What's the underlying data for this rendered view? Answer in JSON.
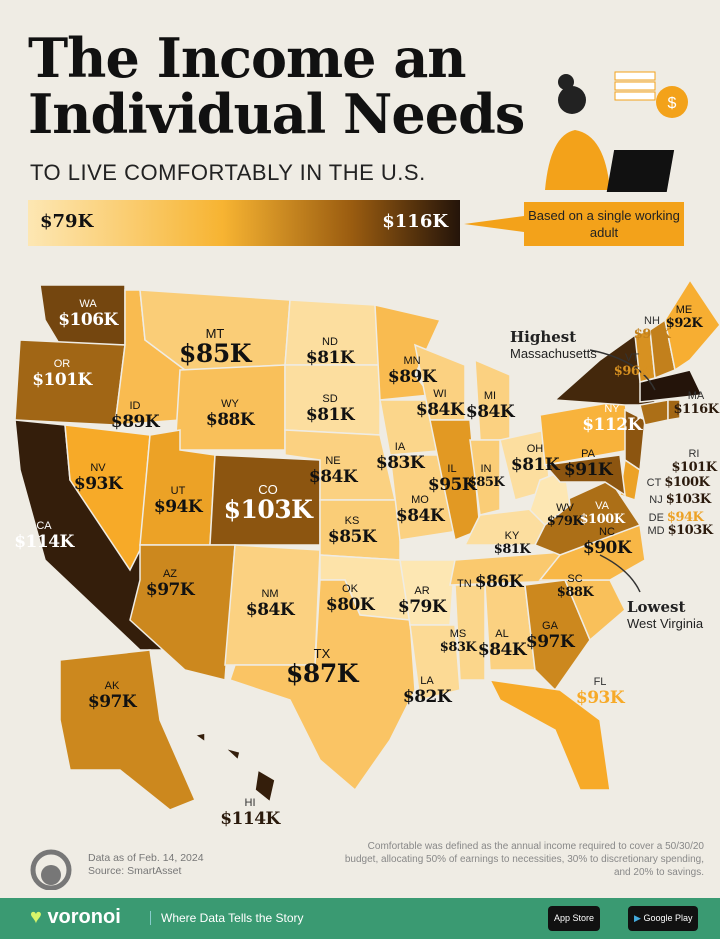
{
  "title_line1": "The Income an",
  "title_line2": "Individual Needs",
  "subtitle": "TO LIVE COMFORTABLY IN THE U.S.",
  "legend": {
    "min": "$79K",
    "max": "$116K",
    "colors": [
      "#fde7b3",
      "#f7b432",
      "#9a5c10",
      "#24140a"
    ]
  },
  "callout": "Based on a single working adult",
  "highest": {
    "label": "Highest",
    "state": "Massachusetts"
  },
  "lowest": {
    "label": "Lowest",
    "state": "West Virginia"
  },
  "states": [
    {
      "abbr": "WA",
      "value": "$106K",
      "k": 106
    },
    {
      "abbr": "OR",
      "value": "$101K",
      "k": 101
    },
    {
      "abbr": "CA",
      "value": "$114K",
      "k": 114
    },
    {
      "abbr": "NV",
      "value": "$93K",
      "k": 93
    },
    {
      "abbr": "ID",
      "value": "$89K",
      "k": 89
    },
    {
      "abbr": "MT",
      "value": "$85K",
      "k": 85
    },
    {
      "abbr": "WY",
      "value": "$88K",
      "k": 88
    },
    {
      "abbr": "UT",
      "value": "$94K",
      "k": 94
    },
    {
      "abbr": "CO",
      "value": "$103K",
      "k": 103
    },
    {
      "abbr": "AZ",
      "value": "$97K",
      "k": 97
    },
    {
      "abbr": "NM",
      "value": "$84K",
      "k": 84
    },
    {
      "abbr": "ND",
      "value": "$81K",
      "k": 81
    },
    {
      "abbr": "SD",
      "value": "$81K",
      "k": 81
    },
    {
      "abbr": "NE",
      "value": "$84K",
      "k": 84
    },
    {
      "abbr": "KS",
      "value": "$85K",
      "k": 85
    },
    {
      "abbr": "OK",
      "value": "$80K",
      "k": 80
    },
    {
      "abbr": "TX",
      "value": "$87K",
      "k": 87
    },
    {
      "abbr": "MN",
      "value": "$89K",
      "k": 89
    },
    {
      "abbr": "IA",
      "value": "$83K",
      "k": 83
    },
    {
      "abbr": "MO",
      "value": "$84K",
      "k": 84
    },
    {
      "abbr": "AR",
      "value": "$79K",
      "k": 79
    },
    {
      "abbr": "LA",
      "value": "$82K",
      "k": 82
    },
    {
      "abbr": "WI",
      "value": "$84K",
      "k": 84
    },
    {
      "abbr": "IL",
      "value": "$95K",
      "k": 95
    },
    {
      "abbr": "MI",
      "value": "$84K",
      "k": 84
    },
    {
      "abbr": "IN",
      "value": "$85K",
      "k": 85
    },
    {
      "abbr": "OH",
      "value": "$81K",
      "k": 81
    },
    {
      "abbr": "KY",
      "value": "$81K",
      "k": 81
    },
    {
      "abbr": "TN",
      "value": "$86K",
      "k": 86
    },
    {
      "abbr": "MS",
      "value": "$83K",
      "k": 83
    },
    {
      "abbr": "AL",
      "value": "$84K",
      "k": 84
    },
    {
      "abbr": "GA",
      "value": "$97K",
      "k": 97
    },
    {
      "abbr": "FL",
      "value": "$93K",
      "k": 93
    },
    {
      "abbr": "SC",
      "value": "$88K",
      "k": 88
    },
    {
      "abbr": "NC",
      "value": "$90K",
      "k": 90
    },
    {
      "abbr": "VA",
      "value": "$100K",
      "k": 100
    },
    {
      "abbr": "WV",
      "value": "$79K",
      "k": 79
    },
    {
      "abbr": "PA",
      "value": "$91K",
      "k": 91
    },
    {
      "abbr": "NY",
      "value": "$112K",
      "k": 112
    },
    {
      "abbr": "NJ",
      "value": "$103K",
      "k": 103
    },
    {
      "abbr": "DE",
      "value": "$94K",
      "k": 94
    },
    {
      "abbr": "MD",
      "value": "$103K",
      "k": 103
    },
    {
      "abbr": "CT",
      "value": "$100K",
      "k": 100
    },
    {
      "abbr": "RI",
      "value": "$101K",
      "k": 101
    },
    {
      "abbr": "MA",
      "value": "$116K",
      "k": 116
    },
    {
      "abbr": "VT",
      "value": "$96K",
      "k": 96
    },
    {
      "abbr": "NH",
      "value": "$98K",
      "k": 98
    },
    {
      "abbr": "ME",
      "value": "$92K",
      "k": 92
    },
    {
      "abbr": "AK",
      "value": "$97K",
      "k": 97
    },
    {
      "abbr": "HI",
      "value": "$114K",
      "k": 114
    }
  ],
  "footer": {
    "date": "Data as of Feb. 14, 2024",
    "source": "Source: SmartAsset",
    "definition": "Comfortable was defined as the annual income required to cover a 50/30/20 budget, allocating 50% of earnings to necessities, 30% to discretionary spending, and 20% to savings.",
    "brand": "voronoi",
    "tagline": "Where Data Tells the Story",
    "app_store": "App Store",
    "google_play": "Google Play",
    "bar_color": "#3a9a72"
  }
}
